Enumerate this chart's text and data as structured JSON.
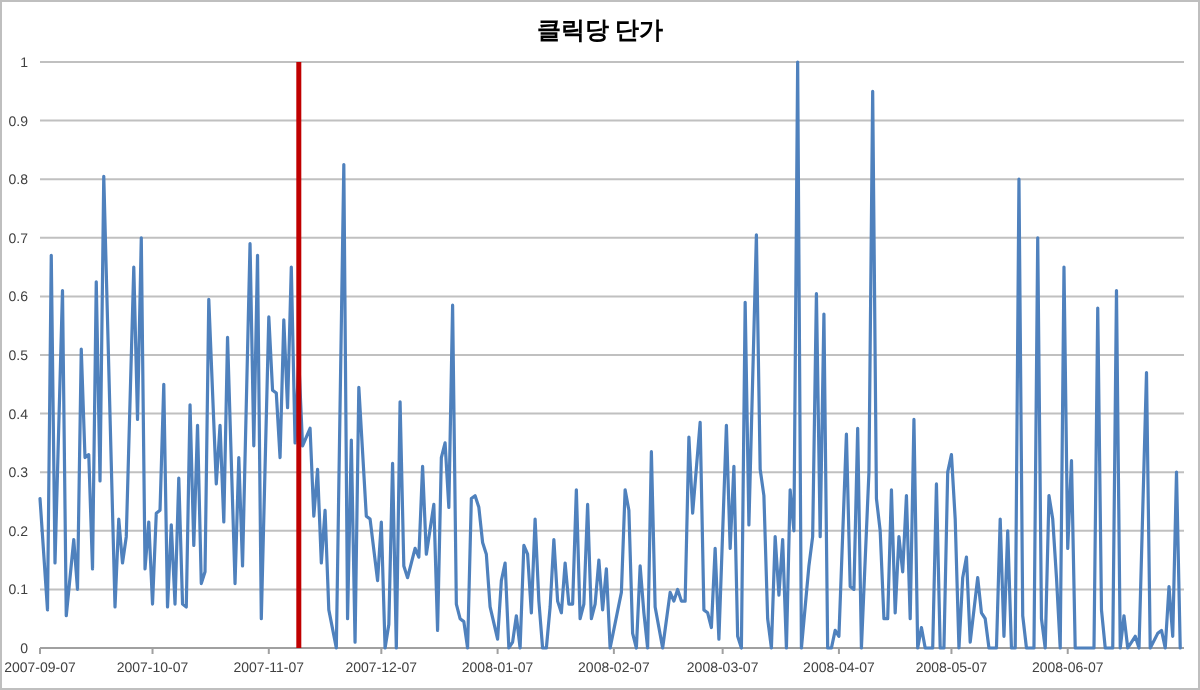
{
  "chart_data": {
    "type": "line",
    "title": "클릭당 단가",
    "x": [
      "2007-09-07",
      "2007-09-09",
      "2007-09-10",
      "2007-09-11",
      "2007-09-13",
      "2007-09-14",
      "2007-09-16",
      "2007-09-17",
      "2007-09-18",
      "2007-09-19",
      "2007-09-20",
      "2007-09-21",
      "2007-09-22",
      "2007-09-23",
      "2007-09-24",
      "2007-09-27",
      "2007-09-28",
      "2007-09-29",
      "2007-09-30",
      "2007-10-02",
      "2007-10-03",
      "2007-10-04",
      "2007-10-05",
      "2007-10-06",
      "2007-10-07",
      "2007-10-08",
      "2007-10-09",
      "2007-10-10",
      "2007-10-11",
      "2007-10-12",
      "2007-10-13",
      "2007-10-14",
      "2007-10-15",
      "2007-10-16",
      "2007-10-17",
      "2007-10-18",
      "2007-10-19",
      "2007-10-20",
      "2007-10-21",
      "2007-10-22",
      "2007-10-24",
      "2007-10-25",
      "2007-10-26",
      "2007-10-27",
      "2007-10-29",
      "2007-10-30",
      "2007-10-31",
      "2007-11-02",
      "2007-11-03",
      "2007-11-04",
      "2007-11-05",
      "2007-11-07",
      "2007-11-08",
      "2007-11-09",
      "2007-11-10",
      "2007-11-11",
      "2007-11-12",
      "2007-11-13",
      "2007-11-14",
      "2007-11-15",
      "2007-11-16",
      "2007-11-18",
      "2007-11-19",
      "2007-11-20",
      "2007-11-21",
      "2007-11-22",
      "2007-11-23",
      "2007-11-25",
      "2007-11-27",
      "2007-11-28",
      "2007-11-29",
      "2007-11-30",
      "2007-12-01",
      "2007-12-03",
      "2007-12-04",
      "2007-12-06",
      "2007-12-07",
      "2007-12-08",
      "2007-12-09",
      "2007-12-10",
      "2007-12-11",
      "2007-12-12",
      "2007-12-13",
      "2007-12-14",
      "2007-12-16",
      "2007-12-17",
      "2007-12-18",
      "2007-12-19",
      "2007-12-21",
      "2007-12-22",
      "2007-12-23",
      "2007-12-24",
      "2007-12-25",
      "2007-12-26",
      "2007-12-27",
      "2007-12-28",
      "2007-12-29",
      "2007-12-30",
      "2007-12-31",
      "2008-01-01",
      "2008-01-02",
      "2008-01-03",
      "2008-01-04",
      "2008-01-05",
      "2008-01-07",
      "2008-01-08",
      "2008-01-09",
      "2008-01-10",
      "2008-01-11",
      "2008-01-12",
      "2008-01-13",
      "2008-01-14",
      "2008-01-15",
      "2008-01-16",
      "2008-01-17",
      "2008-01-18",
      "2008-01-19",
      "2008-01-20",
      "2008-01-21",
      "2008-01-22",
      "2008-01-23",
      "2008-01-24",
      "2008-01-25",
      "2008-01-26",
      "2008-01-27",
      "2008-01-28",
      "2008-01-29",
      "2008-01-30",
      "2008-01-31",
      "2008-02-01",
      "2008-02-02",
      "2008-02-03",
      "2008-02-04",
      "2008-02-05",
      "2008-02-06",
      "2008-02-09",
      "2008-02-10",
      "2008-02-11",
      "2008-02-12",
      "2008-02-13",
      "2008-02-14",
      "2008-02-15",
      "2008-02-16",
      "2008-02-17",
      "2008-02-18",
      "2008-02-20",
      "2008-02-22",
      "2008-02-23",
      "2008-02-24",
      "2008-02-25",
      "2008-02-26",
      "2008-02-27",
      "2008-02-28",
      "2008-03-01",
      "2008-03-02",
      "2008-03-03",
      "2008-03-04",
      "2008-03-05",
      "2008-03-06",
      "2008-03-08",
      "2008-03-09",
      "2008-03-10",
      "2008-03-11",
      "2008-03-12",
      "2008-03-13",
      "2008-03-14",
      "2008-03-16",
      "2008-03-17",
      "2008-03-18",
      "2008-03-19",
      "2008-03-20",
      "2008-03-21",
      "2008-03-22",
      "2008-03-23",
      "2008-03-24",
      "2008-03-25",
      "2008-03-26",
      "2008-03-27",
      "2008-03-28",
      "2008-03-29",
      "2008-03-30",
      "2008-03-31",
      "2008-04-01",
      "2008-04-02",
      "2008-04-03",
      "2008-04-04",
      "2008-04-05",
      "2008-04-06",
      "2008-04-07",
      "2008-04-09",
      "2008-04-10",
      "2008-04-11",
      "2008-04-12",
      "2008-04-13",
      "2008-04-15",
      "2008-04-16",
      "2008-04-17",
      "2008-04-18",
      "2008-04-19",
      "2008-04-20",
      "2008-04-21",
      "2008-04-22",
      "2008-04-23",
      "2008-04-24",
      "2008-04-25",
      "2008-04-26",
      "2008-04-27",
      "2008-04-28",
      "2008-04-29",
      "2008-04-30",
      "2008-05-02",
      "2008-05-03",
      "2008-05-04",
      "2008-05-05",
      "2008-05-06",
      "2008-05-07",
      "2008-05-08",
      "2008-05-09",
      "2008-05-10",
      "2008-05-11",
      "2008-05-12",
      "2008-05-13",
      "2008-05-14",
      "2008-05-15",
      "2008-05-16",
      "2008-05-17",
      "2008-05-19",
      "2008-05-20",
      "2008-05-21",
      "2008-05-22",
      "2008-05-23",
      "2008-05-24",
      "2008-05-25",
      "2008-05-26",
      "2008-05-27",
      "2008-05-29",
      "2008-05-30",
      "2008-05-31",
      "2008-06-01",
      "2008-06-02",
      "2008-06-03",
      "2008-06-04",
      "2008-06-05",
      "2008-06-06",
      "2008-06-07",
      "2008-06-08",
      "2008-06-09",
      "2008-06-14",
      "2008-06-15",
      "2008-06-16",
      "2008-06-17",
      "2008-06-19",
      "2008-06-20",
      "2008-06-21",
      "2008-06-22",
      "2008-06-23",
      "2008-06-25",
      "2008-06-26",
      "2008-06-28",
      "2008-06-29",
      "2008-07-01",
      "2008-07-02",
      "2008-07-03",
      "2008-07-04",
      "2008-07-05",
      "2008-07-06",
      "2008-07-07"
    ],
    "series": [
      {
        "color": "#4f81bd",
        "values": [
          0.255,
          0.065,
          0.67,
          0.145,
          0.61,
          0.055,
          0.185,
          0.1,
          0.51,
          0.325,
          0.33,
          0.135,
          0.625,
          0.285,
          0.805,
          0.07,
          0.22,
          0.145,
          0.19,
          0.65,
          0.39,
          0.7,
          0.135,
          0.215,
          0.075,
          0.23,
          0.235,
          0.45,
          0.07,
          0.21,
          0.075,
          0.29,
          0.075,
          0.07,
          0.415,
          0.175,
          0.38,
          0.11,
          0.13,
          0.595,
          0.28,
          0.38,
          0.215,
          0.53,
          0.11,
          0.325,
          0.14,
          0.69,
          0.345,
          0.67,
          0.05,
          0.565,
          0.44,
          0.435,
          0.325,
          0.56,
          0.41,
          0.65,
          0.35,
          0.49,
          0.345,
          0.375,
          0.225,
          0.305,
          0.145,
          0.235,
          0.065,
          0,
          0.825,
          0.05,
          0.355,
          0.01,
          0.445,
          0.225,
          0.22,
          0.115,
          0.215,
          0,
          0.04,
          0.315,
          0,
          0.42,
          0.14,
          0.12,
          0.17,
          0.155,
          0.31,
          0.16,
          0.245,
          0.03,
          0.325,
          0.35,
          0.24,
          0.585,
          0.075,
          0.05,
          0.045,
          0,
          0.255,
          0.26,
          0.24,
          0.18,
          0.16,
          0.07,
          0.015,
          0.115,
          0.145,
          0,
          0.01,
          0.055,
          0,
          0.175,
          0.16,
          0.06,
          0.22,
          0.08,
          0,
          0,
          0.07,
          0.185,
          0.08,
          0.06,
          0.145,
          0.075,
          0.075,
          0.27,
          0.05,
          0.075,
          0.245,
          0.05,
          0.075,
          0.15,
          0.065,
          0.135,
          0,
          0.095,
          0.27,
          0.235,
          0.025,
          0,
          0.14,
          0.06,
          0,
          0.335,
          0.07,
          0,
          0.095,
          0.08,
          0.1,
          0.08,
          0.08,
          0.36,
          0.23,
          0.385,
          0.065,
          0.06,
          0.035,
          0.17,
          0.015,
          0.38,
          0.17,
          0.31,
          0.02,
          0,
          0.59,
          0.21,
          0.705,
          0.305,
          0.26,
          0.05,
          0,
          0.19,
          0.09,
          0.185,
          0,
          0.27,
          0.2,
          1,
          0,
          0.07,
          0.14,
          0.19,
          0.605,
          0.19,
          0.57,
          0,
          0,
          0.03,
          0.02,
          0.365,
          0.105,
          0.1,
          0.375,
          0,
          0.3,
          0.95,
          0.255,
          0.2,
          0.05,
          0.05,
          0.27,
          0.06,
          0.19,
          0.13,
          0.26,
          0.05,
          0.39,
          0,
          0.035,
          0,
          0,
          0.28,
          0,
          0,
          0.3,
          0.33,
          0.22,
          0,
          0.12,
          0.155,
          0.01,
          0.065,
          0.12,
          0.06,
          0.05,
          0,
          0,
          0.22,
          0.02,
          0.2,
          0,
          0,
          0.8,
          0.055,
          0,
          0,
          0.7,
          0.05,
          0,
          0.26,
          0.22,
          0.12,
          0,
          0.65,
          0.17,
          0.32,
          0,
          0,
          0.58,
          0.065,
          0,
          0,
          0.61,
          0,
          0.055,
          0,
          0.02,
          0,
          0.47,
          0,
          0.025,
          0.03,
          0,
          0.105,
          0.02,
          0.3,
          0
        ]
      }
    ],
    "xlim": [
      "2007-09-07",
      "2008-07-08"
    ],
    "xticks": [
      "2007-09-07",
      "2007-10-07",
      "2007-11-07",
      "2007-12-07",
      "2008-01-07",
      "2008-02-07",
      "2008-03-07",
      "2008-04-07",
      "2008-05-07",
      "2008-06-07"
    ],
    "ylim": [
      0,
      1
    ],
    "yticks": [
      0,
      0.1,
      0.2,
      0.3,
      0.4,
      0.5,
      0.6,
      0.7,
      0.8,
      0.9,
      1
    ],
    "grid": "y",
    "ref_lines": [
      {
        "axis": "x",
        "value": "2007-11-15",
        "color": "#c00000"
      }
    ]
  }
}
